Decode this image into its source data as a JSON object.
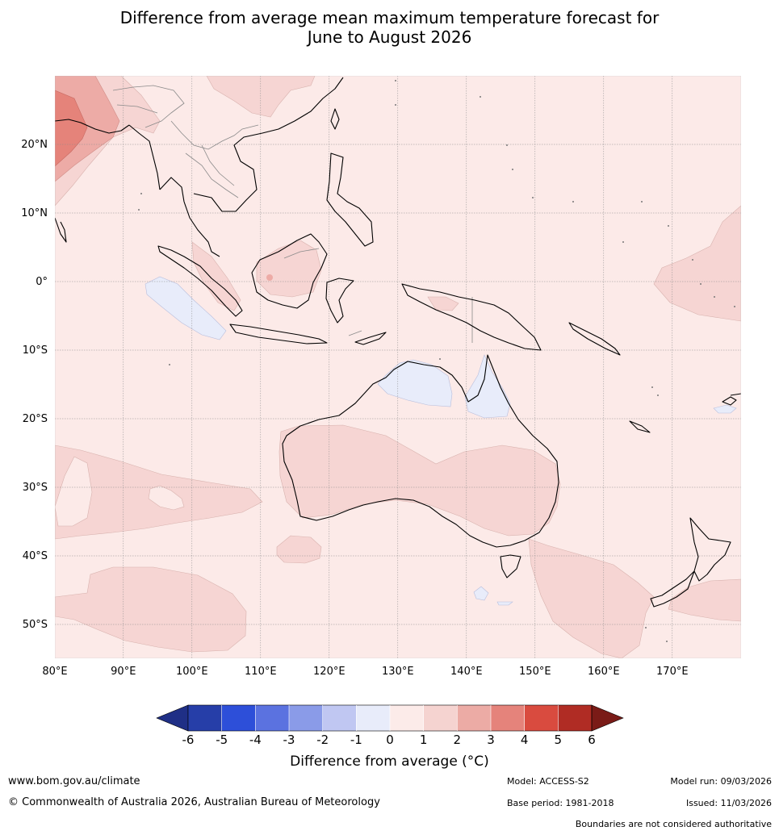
{
  "title": {
    "line1": "Difference from average mean maximum temperature forecast for",
    "line2": "June to August 2026"
  },
  "map": {
    "lon_labels": [
      "80°E",
      "90°E",
      "100°E",
      "110°E",
      "120°E",
      "130°E",
      "140°E",
      "150°E",
      "160°E",
      "170°E"
    ],
    "lat_labels": [
      "20°N",
      "10°N",
      "0°",
      "10°S",
      "20°S",
      "30°S",
      "40°S",
      "50°S"
    ],
    "colors": {
      "background": "#fceae8",
      "warm_1_2": "#f6d5d3",
      "warm_2_3": "#edaba6",
      "warm_3_4": "#e5837a",
      "cool_-1_0": "#e8ecfa",
      "coast": "#000000",
      "border": "#888888"
    }
  },
  "colorbar": {
    "ticks": [
      "-6",
      "-5",
      "-4",
      "-3",
      "-2",
      "-1",
      "0",
      "1",
      "2",
      "3",
      "4",
      "5",
      "6"
    ],
    "colors": [
      "#1f2f86",
      "#263ea8",
      "#2d4fd9",
      "#5b72e0",
      "#8a9be8",
      "#c0c7f2",
      "#e8ecfa",
      "#fcebe9",
      "#f5d3d0",
      "#ecaba5",
      "#e5837b",
      "#d94b3f",
      "#b02c24",
      "#7a1b17"
    ],
    "label": "Difference from average (°C)"
  },
  "footer": {
    "website": "www.bom.gov.au/climate",
    "copyright": "© Commonwealth of Australia 2026, Australian Bureau of Meteorology",
    "model": "Model: ACCESS-S2",
    "base_period": "Base period: 1981-2018",
    "model_run": "Model run: 09/03/2026",
    "issued": "Issued: 11/03/2026",
    "disclaimer": "Boundaries are not considered authoritative"
  }
}
